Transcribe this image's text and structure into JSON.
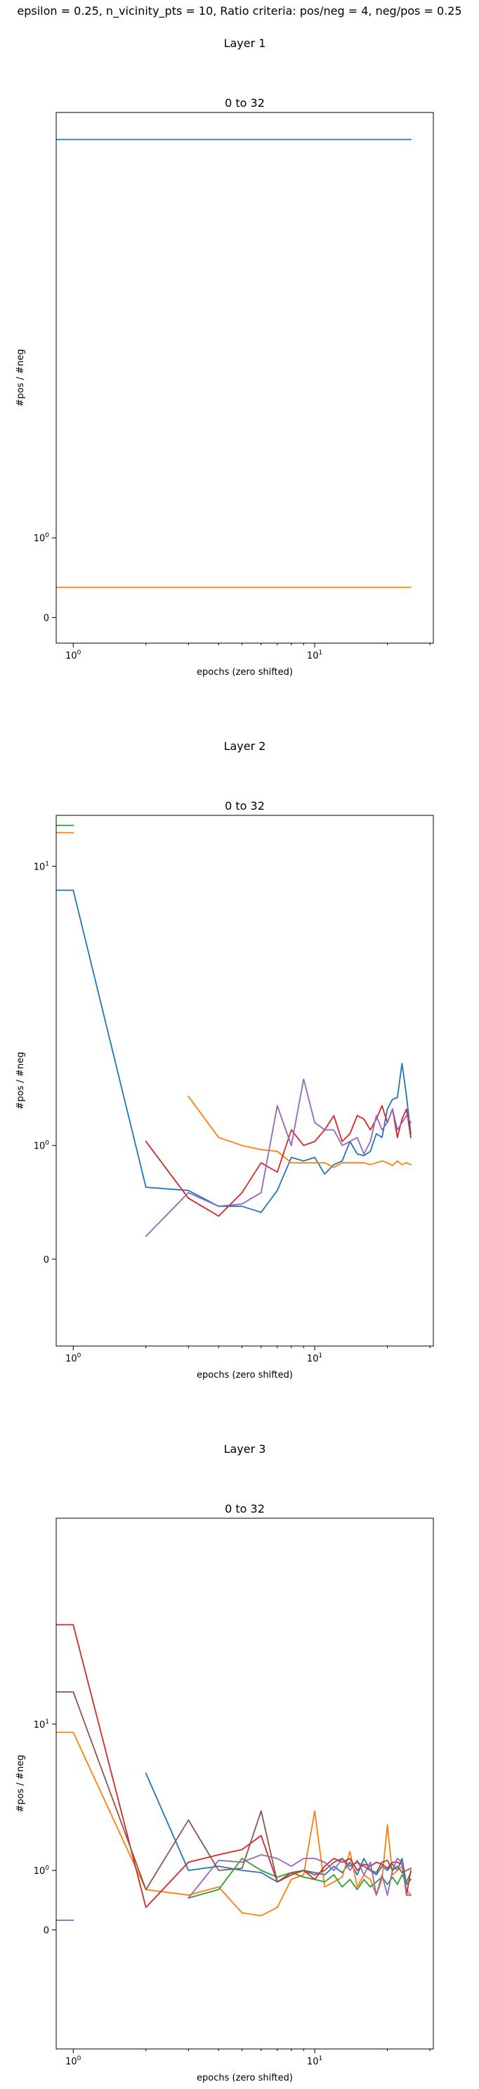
{
  "figure": {
    "suptitle": "epsilon = 0.25, n_vicinity_pts = 10, Ratio criteria: pos/neg = 4, neg/pos = 0.25"
  },
  "colors": [
    "#1f77b4",
    "#ff7f0e",
    "#2ca02c",
    "#d62728",
    "#9467bd",
    "#8c564b"
  ],
  "chart_data": [
    {
      "type": "line",
      "layer_title": "Layer 1",
      "title": "0 to 32",
      "xlabel": "epochs (zero shifted)",
      "ylabel": "#pos / #neg",
      "xscale": "log",
      "yscale": "symlog",
      "xlim": [
        0.85,
        31
      ],
      "ylim": [
        -0.25,
        80
      ],
      "x_ticks": [
        {
          "value": 1,
          "base": "10",
          "exp": "0"
        },
        {
          "value": 10,
          "base": "10",
          "exp": "1"
        }
      ],
      "y_ticks": [
        {
          "value": 0,
          "label": "0"
        },
        {
          "value": 1,
          "base": "10",
          "exp": "0"
        }
      ],
      "grid": false,
      "series": [
        {
          "color": "#1f77b4",
          "x": [
            0.85,
            25
          ],
          "y": [
            63,
            63
          ]
        },
        {
          "color": "#ff7f0e",
          "x": [
            0.85,
            25
          ],
          "y": [
            0.3,
            0.3
          ]
        }
      ]
    },
    {
      "type": "line",
      "layer_title": "Layer 2",
      "title": "0 to 32",
      "xlabel": "epochs (zero shifted)",
      "ylabel": "#pos / #neg",
      "xscale": "log",
      "yscale": "symlog",
      "xlim": [
        0.85,
        31
      ],
      "ylim": [
        -0.7,
        14
      ],
      "x_ticks": [
        {
          "value": 1,
          "base": "10",
          "exp": "0"
        },
        {
          "value": 10,
          "base": "10",
          "exp": "1"
        }
      ],
      "y_ticks": [
        {
          "value": 0,
          "label": "0"
        },
        {
          "value": 1,
          "base": "10",
          "exp": "0"
        },
        {
          "value": 10,
          "base": "10",
          "exp": "1"
        }
      ],
      "grid": false,
      "series": [
        {
          "color": "#1f77b4",
          "x": [
            0.85,
            1,
            2,
            3,
            4,
            5,
            6,
            7,
            8,
            9,
            10,
            11,
            12,
            13,
            14,
            15,
            16,
            17,
            18,
            19,
            20,
            21,
            22,
            23,
            24,
            25
          ],
          "y": [
            8.5,
            8.5,
            0.55,
            0.52,
            0.38,
            0.38,
            0.33,
            0.52,
            0.86,
            0.82,
            0.86,
            0.68,
            0.78,
            0.82,
            1.05,
            0.9,
            0.88,
            0.93,
            1.15,
            1.1,
            1.5,
            1.65,
            1.68,
            2.3,
            1.7,
            1.15
          ]
        },
        {
          "color": "#ff7f0e",
          "x": [
            0.85,
            1
          ],
          "y": [
            12.5,
            12.5
          ]
        },
        {
          "color": "#ff7f0e",
          "x": [
            3,
            4,
            5,
            6,
            7,
            8,
            9,
            10,
            11,
            12,
            13,
            14,
            15,
            16,
            17,
            18,
            19,
            20,
            21,
            22,
            23,
            24,
            25
          ],
          "y": [
            1.7,
            1.1,
            1.0,
            0.95,
            0.93,
            0.8,
            0.8,
            0.8,
            0.8,
            0.75,
            0.8,
            0.8,
            0.8,
            0.8,
            0.78,
            0.8,
            0.82,
            0.8,
            0.77,
            0.82,
            0.78,
            0.8,
            0.78
          ]
        },
        {
          "color": "#2ca02c",
          "x": [
            0.85,
            1
          ],
          "y": [
            13.1,
            13.1
          ]
        },
        {
          "color": "#d62728",
          "x": [
            2,
            3,
            4,
            5,
            6,
            7,
            8,
            9,
            10,
            11,
            12,
            13,
            14,
            15,
            16,
            17,
            18,
            19,
            20,
            21,
            22,
            23,
            24,
            25
          ],
          "y": [
            1.05,
            0.45,
            0.3,
            0.5,
            0.8,
            0.7,
            1.2,
            1.0,
            1.05,
            1.2,
            1.4,
            1.05,
            1.15,
            1.4,
            1.35,
            1.2,
            1.35,
            1.55,
            1.3,
            1.5,
            1.1,
            1.35,
            1.5,
            1.1
          ]
        },
        {
          "color": "#9467bd",
          "x": [
            2,
            3,
            4,
            5,
            6,
            7,
            8,
            9,
            10,
            11,
            12,
            13,
            14,
            15,
            16,
            17,
            18,
            19,
            20,
            21,
            22,
            23,
            24,
            25
          ],
          "y": [
            0.15,
            0.5,
            0.38,
            0.4,
            0.5,
            1.55,
            1.0,
            2.0,
            1.3,
            1.2,
            1.2,
            1.0,
            1.05,
            1.1,
            0.9,
            1.05,
            1.4,
            1.2,
            1.3,
            1.5,
            1.2,
            1.3,
            1.4,
            1.3
          ]
        }
      ]
    },
    {
      "type": "line",
      "layer_title": "Layer 3",
      "title": "0 to 32",
      "xlabel": "epochs (zero shifted)",
      "ylabel": "#pos / #neg",
      "xscale": "log",
      "yscale": "symlog",
      "xlim": [
        0.85,
        31
      ],
      "ylim": [
        -3,
        120
      ],
      "x_ticks": [
        {
          "value": 1,
          "base": "10",
          "exp": "0"
        },
        {
          "value": 10,
          "base": "10",
          "exp": "1"
        }
      ],
      "y_ticks": [
        {
          "value": 0,
          "label": "0"
        },
        {
          "value": 1,
          "base": "10",
          "exp": "0"
        },
        {
          "value": 10,
          "base": "10",
          "exp": "1"
        }
      ],
      "grid": false,
      "series": [
        {
          "color": "#1f77b4",
          "x": [
            2,
            3,
            4,
            5,
            6,
            7,
            8,
            9,
            10,
            11,
            12,
            13,
            14,
            15,
            16,
            17,
            18,
            19,
            20,
            21,
            22,
            23,
            24,
            25
          ],
          "y": [
            5.2,
            1.0,
            1.1,
            1.0,
            0.95,
            0.75,
            0.9,
            1.0,
            0.95,
            0.9,
            1.1,
            0.95,
            1.2,
            0.9,
            1.3,
            1.0,
            0.9,
            1.1,
            1.0,
            1.15,
            1.0,
            1.3,
            0.7,
            0.8
          ]
        },
        {
          "color": "#ff7f0e",
          "x": [
            0.85,
            1,
            2,
            3,
            4,
            5,
            6,
            7,
            8,
            9,
            10,
            11,
            12,
            13,
            14,
            15,
            16,
            17,
            18,
            19,
            20,
            21,
            22,
            23,
            24,
            25
          ],
          "y": [
            9,
            9,
            0.6,
            0.5,
            0.65,
            0.22,
            0.18,
            0.3,
            0.8,
            0.9,
            3.0,
            0.65,
            0.75,
            0.85,
            1.5,
            0.65,
            0.9,
            0.8,
            0.5,
            0.8,
            2.4,
            0.9,
            1.0,
            1.1,
            0.6,
            0.5
          ]
        },
        {
          "color": "#2ca02c",
          "x": [
            3,
            4,
            5,
            6,
            7,
            8,
            9,
            10,
            11,
            12,
            13,
            14,
            15,
            16,
            17,
            18,
            19,
            20,
            21,
            22,
            23,
            24,
            25
          ],
          "y": [
            0.45,
            0.6,
            1.3,
            1.0,
            0.85,
            0.95,
            0.85,
            0.8,
            0.75,
            0.9,
            0.65,
            0.8,
            0.6,
            0.8,
            0.65,
            0.75,
            0.85,
            0.7,
            0.85,
            0.7,
            0.9,
            0.75,
            0.95
          ]
        },
        {
          "color": "#d62728",
          "x": [
            0.85,
            1,
            2,
            3,
            4,
            5,
            6,
            7,
            8,
            9,
            10,
            11,
            12,
            13,
            14,
            15,
            16,
            17,
            18,
            19,
            20,
            21,
            22,
            23,
            24,
            25
          ],
          "y": [
            34,
            34,
            0.3,
            1.2,
            1.4,
            1.55,
            2.0,
            0.75,
            0.9,
            1.0,
            0.8,
            1.1,
            1.3,
            1.2,
            1.3,
            1.0,
            1.15,
            1.1,
            1.2,
            1.15,
            1.05,
            1.2,
            1.2,
            1.15,
            0.5,
            1.0
          ]
        },
        {
          "color": "#9467bd",
          "x": [
            0.85,
            1
          ],
          "y": [
            0.12,
            0.12
          ]
        },
        {
          "color": "#9467bd",
          "x": [
            3,
            4,
            5,
            6,
            7,
            8,
            9,
            10,
            11,
            12,
            13,
            14,
            15,
            16,
            17,
            18,
            19,
            20,
            21,
            22,
            23,
            24,
            25
          ],
          "y": [
            0.45,
            1.25,
            1.2,
            1.4,
            1.3,
            1.1,
            1.3,
            1.3,
            1.2,
            1.0,
            1.3,
            1.0,
            1.25,
            0.9,
            1.2,
            0.5,
            0.9,
            0.5,
            1.0,
            1.3,
            1.2,
            0.5,
            0.5
          ]
        },
        {
          "color": "#8c564b",
          "x": [
            0.85,
            1,
            2,
            3,
            4,
            5,
            6,
            7,
            8,
            9,
            10,
            11,
            12,
            13,
            14,
            15,
            16,
            17,
            18,
            19,
            20,
            21,
            22,
            23,
            24,
            25
          ],
          "y": [
            15,
            15,
            0.6,
            2.6,
            1.0,
            1.05,
            3.0,
            0.75,
            0.95,
            1.0,
            0.9,
            1.0,
            1.2,
            1.3,
            1.1,
            1.2,
            1.1,
            1.0,
            0.95,
            1.2,
            1.25,
            1.0,
            1.1,
            0.95,
            1.0,
            1.05
          ]
        }
      ]
    }
  ]
}
